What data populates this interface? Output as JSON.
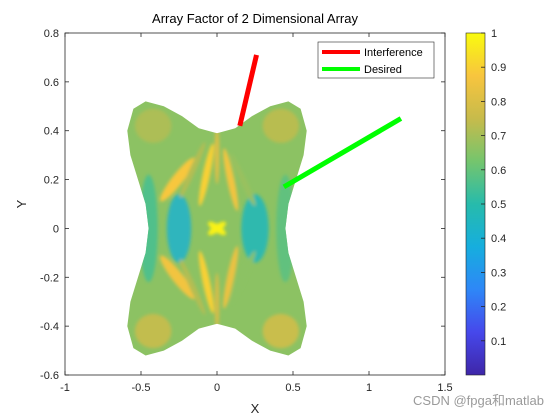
{
  "watermark": "CSDN @fpga和matlab",
  "chart_data": {
    "type": "surface",
    "title": "Array Factor of 2 Dimensional Array",
    "xlabel": "X",
    "ylabel": "Y",
    "xlim": [
      -1,
      1.5
    ],
    "ylim": [
      -0.6,
      0.8
    ],
    "xticks": [
      -1,
      -0.5,
      0,
      0.5,
      1,
      1.5
    ],
    "xtick_labels": [
      "-1",
      "-0.5",
      "0",
      "0.5",
      "1",
      "1.5"
    ],
    "yticks": [
      -0.6,
      -0.4,
      -0.2,
      0,
      0.2,
      0.4,
      0.6,
      0.8
    ],
    "ytick_labels": [
      "-0.6",
      "-0.4",
      "-0.2",
      "0",
      "0.2",
      "0.4",
      "0.6",
      "0.8"
    ],
    "grid": false,
    "colorbar": {
      "lim": [
        0,
        1
      ],
      "ticks": [
        0.1,
        0.2,
        0.3,
        0.4,
        0.5,
        0.6,
        0.7,
        0.8,
        0.9,
        1
      ],
      "tick_labels": [
        "0.1",
        "0.2",
        "0.3",
        "0.4",
        "0.5",
        "0.6",
        "0.7",
        "0.8",
        "0.9",
        "1"
      ],
      "colormap": "parula"
    },
    "legend": {
      "location": "top-right",
      "entries": [
        {
          "label": "Interference",
          "color": "#ff0000"
        },
        {
          "label": "Desired",
          "color": "#00ff00"
        }
      ]
    },
    "lines": [
      {
        "name": "Interference",
        "color": "#ff0000",
        "x": [
          0.15,
          0.26
        ],
        "y": [
          0.42,
          0.71
        ]
      },
      {
        "name": "Desired",
        "color": "#00ff00",
        "x": [
          0.44,
          1.21
        ],
        "y": [
          0.17,
          0.45
        ]
      }
    ],
    "surface": {
      "outline_x": [
        -0.55,
        -0.47,
        -0.35,
        -0.23,
        -0.12,
        0,
        0.12,
        0.23,
        0.35,
        0.47,
        0.55,
        0.59,
        0.57,
        0.52,
        0.47,
        0.45,
        0.47,
        0.52,
        0.57,
        0.59,
        0.55,
        0.47,
        0.35,
        0.23,
        0.12,
        0,
        -0.12,
        -0.23,
        -0.35,
        -0.47,
        -0.55,
        -0.59,
        -0.57,
        -0.52,
        -0.47,
        -0.45,
        -0.47,
        -0.52,
        -0.57,
        -0.59
      ],
      "outline_y": [
        0.49,
        0.52,
        0.5,
        0.46,
        0.41,
        0.39,
        0.41,
        0.46,
        0.5,
        0.52,
        0.49,
        0.4,
        0.3,
        0.2,
        0.1,
        0.0,
        -0.1,
        -0.2,
        -0.3,
        -0.4,
        -0.49,
        -0.52,
        -0.5,
        -0.46,
        -0.41,
        -0.39,
        -0.41,
        -0.46,
        -0.5,
        -0.52,
        -0.49,
        -0.4,
        -0.3,
        -0.2,
        -0.1,
        0.0,
        0.1,
        0.2,
        0.3,
        0.4
      ],
      "lobes": [
        {
          "x": -0.26,
          "y": 0.2,
          "len": 0.36,
          "wid": 0.045,
          "angle": -52,
          "value": 0.88
        },
        {
          "x": -0.26,
          "y": -0.2,
          "len": 0.36,
          "wid": 0.045,
          "angle": 52,
          "value": 0.86
        },
        {
          "x": -0.07,
          "y": 0.22,
          "len": 0.42,
          "wid": 0.03,
          "angle": -78,
          "value": 0.9
        },
        {
          "x": -0.07,
          "y": -0.22,
          "len": 0.42,
          "wid": 0.03,
          "angle": 78,
          "value": 0.9
        },
        {
          "x": 0.09,
          "y": 0.2,
          "len": 0.42,
          "wid": 0.03,
          "angle": -102,
          "value": 0.86
        },
        {
          "x": 0.09,
          "y": -0.2,
          "len": 0.42,
          "wid": 0.03,
          "angle": 102,
          "value": 0.84
        },
        {
          "x": -0.16,
          "y": 0.24,
          "len": 0.4,
          "wid": 0.025,
          "angle": -66,
          "value": 0.72
        },
        {
          "x": -0.16,
          "y": -0.24,
          "len": 0.4,
          "wid": 0.025,
          "angle": 66,
          "value": 0.72
        },
        {
          "x": 0.17,
          "y": 0.2,
          "len": 0.38,
          "wid": 0.025,
          "angle": -115,
          "value": 0.68
        },
        {
          "x": 0.17,
          "y": -0.2,
          "len": 0.38,
          "wid": 0.025,
          "angle": 115,
          "value": 0.66
        },
        {
          "x": 0.0,
          "y": 0.3,
          "len": 0.38,
          "wid": 0.02,
          "angle": -90,
          "value": 0.8
        },
        {
          "x": 0.0,
          "y": -0.3,
          "len": 0.38,
          "wid": 0.02,
          "angle": 90,
          "value": 0.78
        },
        {
          "x": 0.0,
          "y": 0.0,
          "len": 0.14,
          "wid": 0.03,
          "angle": 35,
          "value": 0.98
        },
        {
          "x": 0.0,
          "y": 0.0,
          "len": 0.14,
          "wid": 0.03,
          "angle": -35,
          "value": 0.98
        }
      ],
      "patches": [
        {
          "x": -0.25,
          "y": 0.0,
          "rx": 0.08,
          "ry": 0.14,
          "value": 0.42
        },
        {
          "x": 0.25,
          "y": 0.0,
          "rx": 0.09,
          "ry": 0.14,
          "value": 0.46
        },
        {
          "x": -0.45,
          "y": 0.0,
          "rx": 0.06,
          "ry": 0.22,
          "value": 0.55
        },
        {
          "x": 0.45,
          "y": 0.0,
          "rx": 0.06,
          "ry": 0.22,
          "value": 0.58
        },
        {
          "x": -0.42,
          "y": 0.42,
          "rx": 0.12,
          "ry": 0.07,
          "value": 0.72
        },
        {
          "x": 0.42,
          "y": 0.42,
          "rx": 0.12,
          "ry": 0.07,
          "value": 0.74
        },
        {
          "x": -0.42,
          "y": -0.42,
          "rx": 0.12,
          "ry": 0.07,
          "value": 0.76
        },
        {
          "x": 0.42,
          "y": -0.42,
          "rx": 0.12,
          "ry": 0.07,
          "value": 0.78
        }
      ],
      "base_value": 0.66
    }
  }
}
